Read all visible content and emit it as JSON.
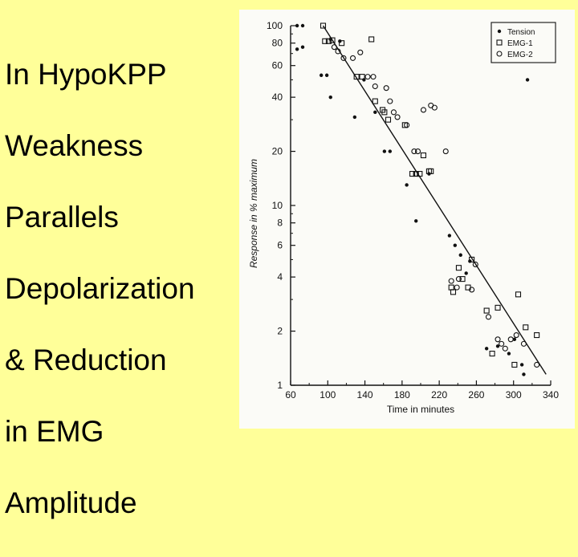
{
  "slide": {
    "title_lines": [
      "In HypoKPP",
      "Weakness",
      "Parallels",
      "Depolarization",
      "& Reduction",
      "in EMG",
      "Amplitude"
    ]
  },
  "chart_data": {
    "type": "scatter",
    "xlabel": "Time in minutes",
    "ylabel": "Response in % maximum",
    "xlim": [
      60,
      340
    ],
    "ylim": [
      1,
      100
    ],
    "yscale": "log",
    "x_ticks": [
      60,
      100,
      140,
      180,
      220,
      260,
      300,
      340
    ],
    "y_ticks": [
      1,
      2,
      4,
      6,
      8,
      10,
      20,
      40,
      60,
      80,
      100
    ],
    "grid": false,
    "legend_position": "top-right",
    "series": [
      {
        "name": "Tension",
        "marker": "dot",
        "points": [
          [
            67,
            100
          ],
          [
            73,
            100
          ],
          [
            67,
            74
          ],
          [
            73,
            76
          ],
          [
            93,
            53
          ],
          [
            99,
            53
          ],
          [
            103,
            40
          ],
          [
            103,
            84
          ],
          [
            113,
            82
          ],
          [
            129,
            31
          ],
          [
            139,
            50
          ],
          [
            151,
            33
          ],
          [
            161,
            20
          ],
          [
            167,
            20
          ],
          [
            185,
            13
          ],
          [
            195,
            8.2
          ],
          [
            209,
            15
          ],
          [
            231,
            6.8
          ],
          [
            237,
            6
          ],
          [
            243,
            5.3
          ],
          [
            249,
            4.2
          ],
          [
            253,
            4.9
          ],
          [
            271,
            1.6
          ],
          [
            283,
            1.65
          ],
          [
            295,
            1.5
          ],
          [
            301,
            1.8
          ],
          [
            309,
            1.3
          ],
          [
            311,
            1.15
          ],
          [
            315,
            50
          ]
        ]
      },
      {
        "name": "EMG-1",
        "marker": "square",
        "points": [
          [
            95,
            100
          ],
          [
            97,
            82
          ],
          [
            101,
            82
          ],
          [
            105,
            83
          ],
          [
            115,
            80
          ],
          [
            131,
            52
          ],
          [
            137,
            52
          ],
          [
            147,
            84
          ],
          [
            151,
            38
          ],
          [
            159,
            34
          ],
          [
            161,
            33
          ],
          [
            165,
            30
          ],
          [
            183,
            28
          ],
          [
            191,
            15
          ],
          [
            195,
            15
          ],
          [
            199,
            15
          ],
          [
            203,
            19
          ],
          [
            209,
            15.5
          ],
          [
            211,
            15.5
          ],
          [
            233,
            3.5
          ],
          [
            235,
            3.3
          ],
          [
            241,
            4.5
          ],
          [
            245,
            3.9
          ],
          [
            251,
            3.5
          ],
          [
            255,
            5
          ],
          [
            271,
            2.6
          ],
          [
            277,
            1.5
          ],
          [
            283,
            2.7
          ],
          [
            301,
            1.3
          ],
          [
            305,
            3.2
          ],
          [
            313,
            2.1
          ],
          [
            325,
            1.9
          ]
        ]
      },
      {
        "name": "EMG-2",
        "marker": "circle",
        "points": [
          [
            107,
            76
          ],
          [
            111,
            72
          ],
          [
            117,
            66
          ],
          [
            127,
            66
          ],
          [
            135,
            71
          ],
          [
            143,
            52
          ],
          [
            149,
            52
          ],
          [
            151,
            46
          ],
          [
            163,
            45
          ],
          [
            167,
            38
          ],
          [
            171,
            33
          ],
          [
            175,
            31
          ],
          [
            185,
            28
          ],
          [
            193,
            20
          ],
          [
            195,
            15
          ],
          [
            197,
            20
          ],
          [
            203,
            34
          ],
          [
            211,
            36
          ],
          [
            215,
            35
          ],
          [
            227,
            20
          ],
          [
            233,
            3.8
          ],
          [
            239,
            3.5
          ],
          [
            241,
            3.9
          ],
          [
            255,
            3.4
          ],
          [
            259,
            4.7
          ],
          [
            273,
            2.4
          ],
          [
            283,
            1.8
          ],
          [
            287,
            1.7
          ],
          [
            291,
            1.6
          ],
          [
            297,
            1.8
          ],
          [
            303,
            1.9
          ],
          [
            311,
            1.7
          ],
          [
            325,
            1.3
          ]
        ]
      }
    ],
    "fit_line": {
      "from": [
        95,
        100
      ],
      "to": [
        335,
        1.15
      ]
    }
  }
}
